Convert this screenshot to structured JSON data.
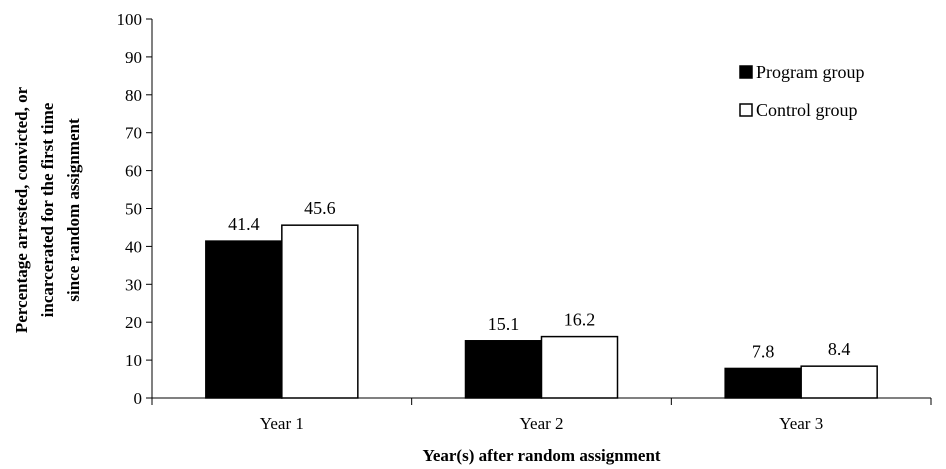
{
  "chart_data": {
    "type": "bar",
    "categories": [
      "Year 1",
      "Year 2",
      "Year 3"
    ],
    "series": [
      {
        "name": "Program group",
        "values": [
          41.4,
          15.1,
          7.8
        ],
        "color": "#000000"
      },
      {
        "name": "Control group",
        "values": [
          45.6,
          16.2,
          8.4
        ],
        "color": "#ffffff"
      }
    ],
    "xlabel": "Year(s) after random assignment",
    "ylabel_lines": [
      "Percentage arrested, convicted, or",
      "incarcerated for the first time",
      "since random assignment"
    ],
    "ylim": [
      0,
      100
    ],
    "yticks": [
      0,
      10,
      20,
      30,
      40,
      50,
      60,
      70,
      80,
      90,
      100
    ],
    "grid": false,
    "legend_position": "top-right",
    "data_labels": true
  }
}
